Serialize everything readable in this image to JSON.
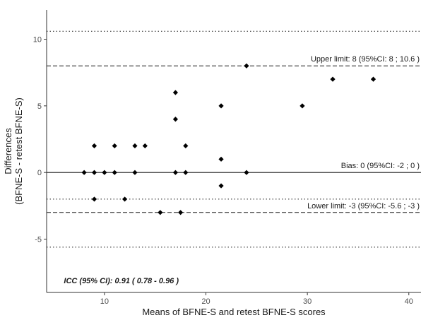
{
  "chart_data": {
    "type": "scatter",
    "title": "",
    "xlabel": "Means of BFNE-S and retest BFNE-S scores",
    "ylabel_line1": "Differences",
    "ylabel_line2": "(BFNE-S - retest BFNE-S)",
    "xlim": [
      4.3,
      41.2
    ],
    "ylim": [
      -9.0,
      12.2
    ],
    "x_ticks": [
      10,
      20,
      30,
      40
    ],
    "y_ticks": [
      -5,
      0,
      5,
      10
    ],
    "x_tick_labels": [
      "10",
      "20",
      "30",
      "40"
    ],
    "y_tick_labels": [
      "-5",
      "0",
      "5",
      "10"
    ],
    "grid": false,
    "points": [
      {
        "x": 8,
        "y": 0
      },
      {
        "x": 9,
        "y": 0
      },
      {
        "x": 9,
        "y": 2
      },
      {
        "x": 9,
        "y": -2
      },
      {
        "x": 10,
        "y": 0
      },
      {
        "x": 11,
        "y": 0
      },
      {
        "x": 11,
        "y": 2
      },
      {
        "x": 12,
        "y": -2
      },
      {
        "x": 13,
        "y": 0
      },
      {
        "x": 13,
        "y": 2
      },
      {
        "x": 14,
        "y": 2
      },
      {
        "x": 15.5,
        "y": -3
      },
      {
        "x": 17,
        "y": 6
      },
      {
        "x": 17,
        "y": 4
      },
      {
        "x": 17,
        "y": 0
      },
      {
        "x": 17.5,
        "y": -3
      },
      {
        "x": 18,
        "y": 2
      },
      {
        "x": 18,
        "y": 0
      },
      {
        "x": 21.5,
        "y": 5
      },
      {
        "x": 21.5,
        "y": 1
      },
      {
        "x": 21.5,
        "y": -1
      },
      {
        "x": 24,
        "y": 8
      },
      {
        "x": 24,
        "y": 0
      },
      {
        "x": 29.5,
        "y": 5
      },
      {
        "x": 32.5,
        "y": 7
      },
      {
        "x": 36.5,
        "y": 7
      }
    ],
    "reference_lines": [
      {
        "name": "bias",
        "y": 0,
        "style": "solid",
        "label": "Bias: 0 (95%CI: -2 ; 0 )"
      },
      {
        "name": "upper-limit",
        "y": 8,
        "style": "dashed",
        "label": "Upper limit: 8 (95%CI: 8 ; 10.6 )"
      },
      {
        "name": "lower-limit",
        "y": -3,
        "style": "dashed",
        "label": "Lower limit: -3 (95%CI: -5.6 ; -3 )"
      },
      {
        "name": "upper-ci-bound",
        "y": 10.6,
        "style": "dotted",
        "label": ""
      },
      {
        "name": "bias-ci-bound",
        "y": -2,
        "style": "dotted",
        "label": ""
      },
      {
        "name": "lower-ci-bound",
        "y": -5.6,
        "style": "dotted",
        "label": ""
      }
    ],
    "annotation": "ICC (95% CI): 0.91 ( 0.78 - 0.96 )",
    "annotation_position": {
      "x": 6,
      "y": -8.1
    }
  }
}
